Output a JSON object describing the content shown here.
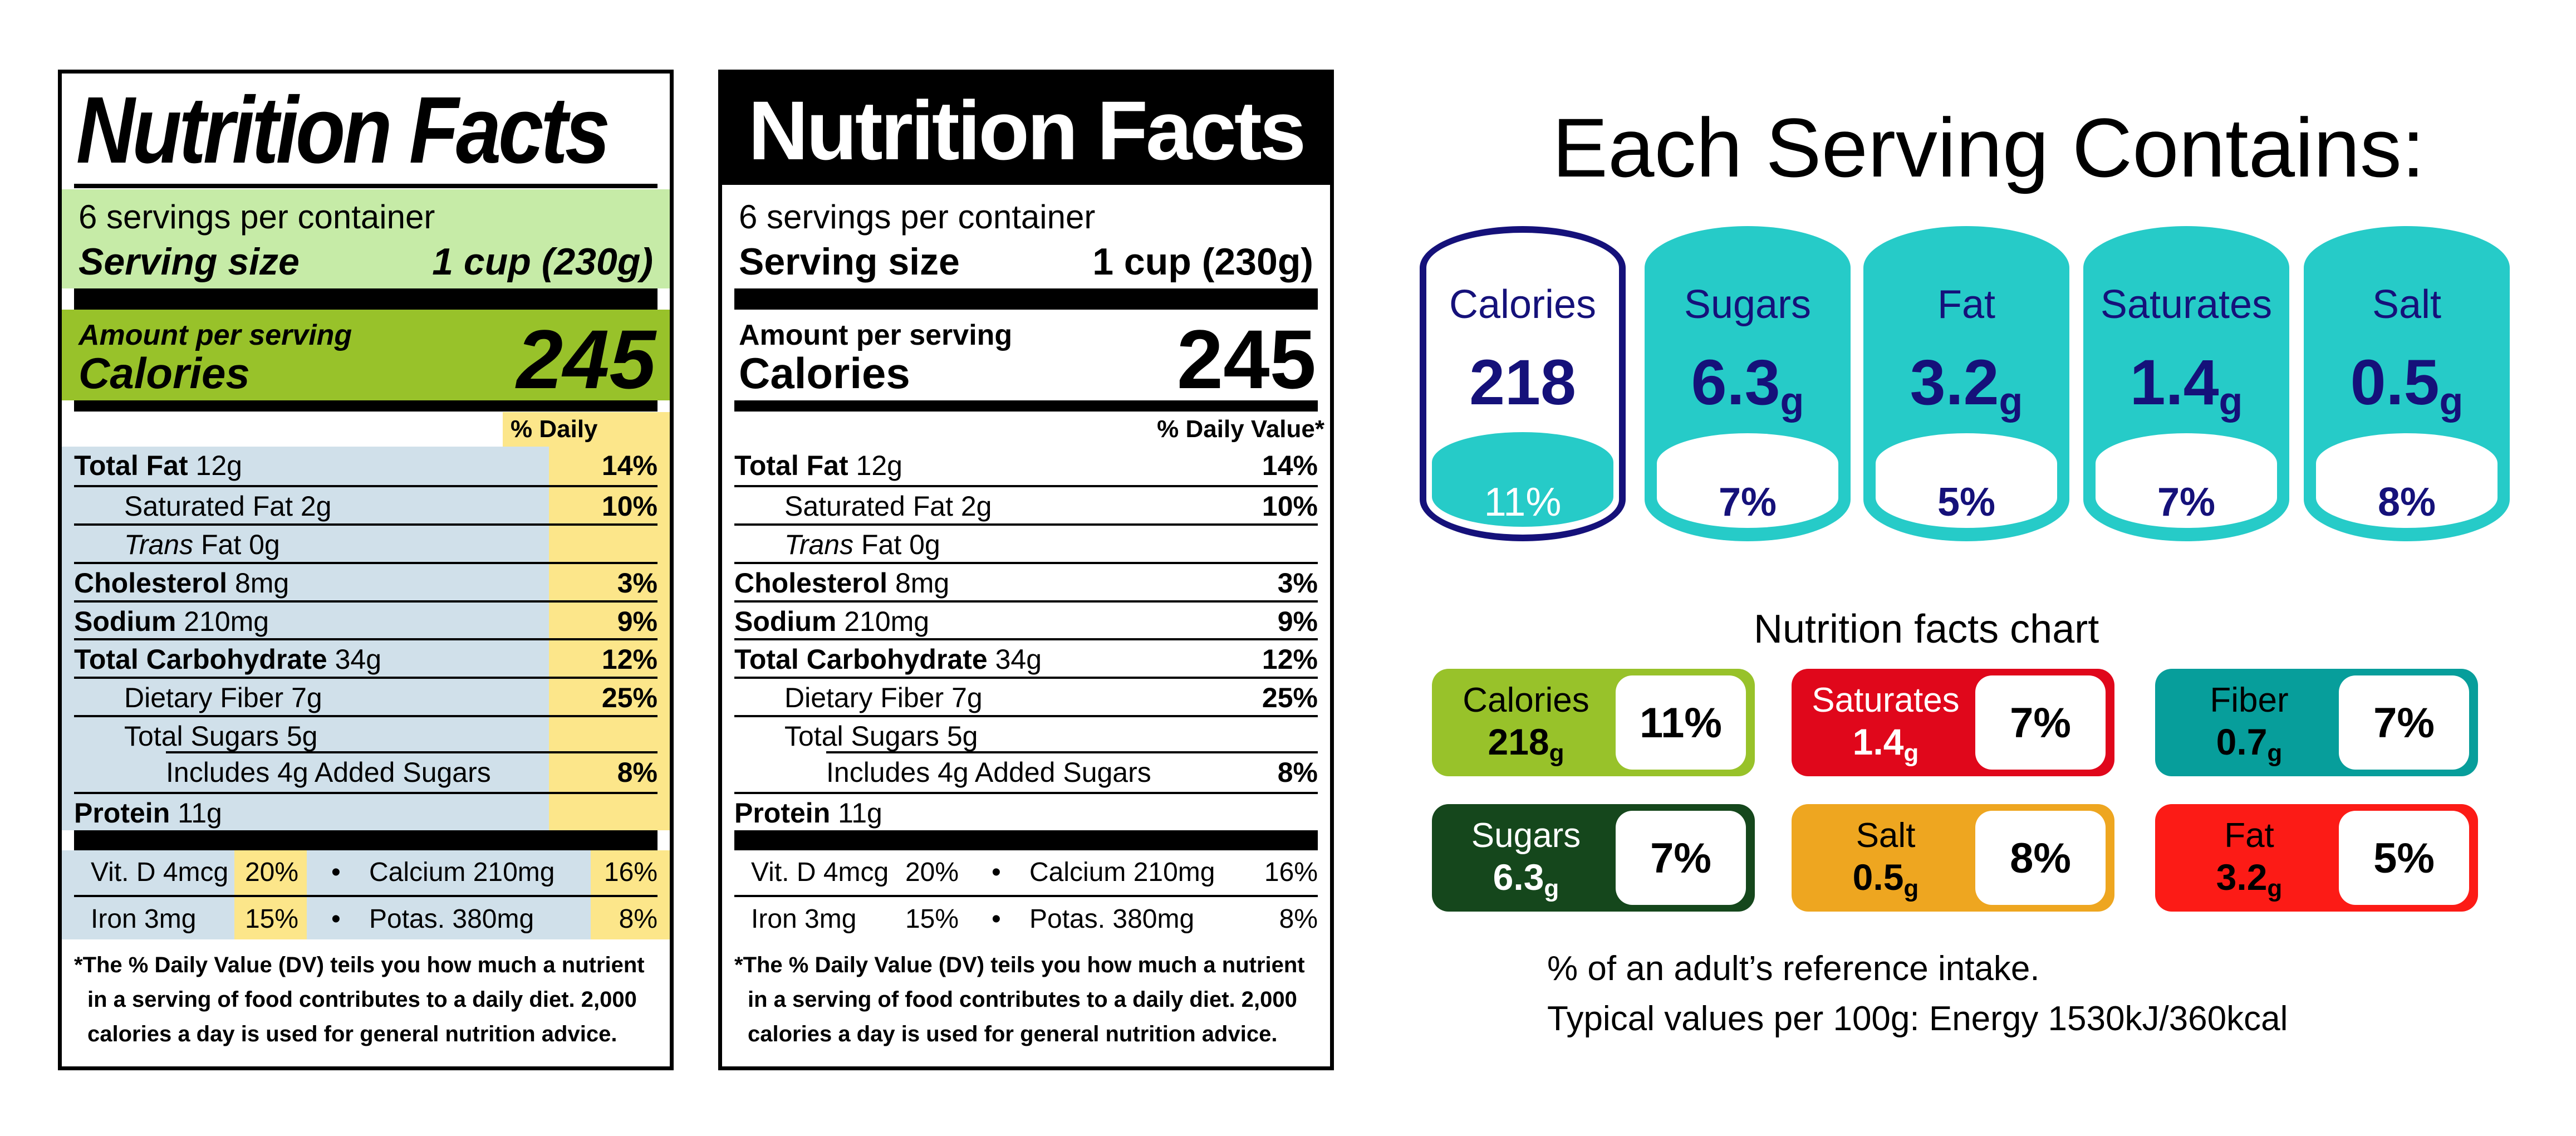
{
  "label_colored": {
    "title": "Nutrition Facts",
    "servings": "6 servings per container",
    "serving_size_label": "Serving size",
    "serving_size_value": "1 cup (230g)",
    "amount_per_serving": "Amount per serving",
    "calories_label": "Calories",
    "calories_value": "245",
    "dv_header": "% Daily Value*",
    "colors": {
      "serving_band": "#c6eba7",
      "calories_band": "#98c22a",
      "nutrient_bg": "#d0e0ea",
      "dv_column": "#fce68a"
    }
  },
  "label_plain": {
    "title": "Nutrition Facts",
    "servings": "6 servings per container",
    "serving_size_label": "Serving size",
    "serving_size_value": "1 cup (230g)",
    "amount_per_serving": "Amount per serving",
    "calories_label": "Calories",
    "calories_value": "245",
    "dv_header": "% Daily Value*"
  },
  "nutrients": [
    {
      "bold": "Total Fat",
      "text": " 12g",
      "dv": "14%",
      "indent": 0
    },
    {
      "text": "Saturated Fat 2g",
      "dv": "10%",
      "indent": 1
    },
    {
      "italic": "Trans",
      "text": " Fat 0g",
      "dv": "",
      "indent": 1
    },
    {
      "bold": "Cholesterol",
      "text": " 8mg",
      "dv": "3%",
      "indent": 0
    },
    {
      "bold": "Sodium",
      "text": " 210mg",
      "dv": "9%",
      "indent": 0
    },
    {
      "bold": "Total Carbohydrate",
      "text": " 34g",
      "dv": "12%",
      "indent": 0
    },
    {
      "text": "Dietary Fiber 7g",
      "dv": "25%",
      "indent": 1
    },
    {
      "text": "Total Sugars 5g",
      "dv": "",
      "indent": 1
    },
    {
      "text": "Includes 4g Added Sugars",
      "dv": "8%",
      "indent": 2
    },
    {
      "bold": "Protein",
      "text": " 11g",
      "dv": "",
      "indent": 0
    }
  ],
  "vitamins": [
    [
      {
        "name": "Vit. D 4mcg",
        "dv": "20%"
      },
      {
        "name": "Calcium 210mg",
        "dv": "16%"
      }
    ],
    [
      {
        "name": "Iron 3mg",
        "dv": "15%"
      },
      {
        "name": "Potas. 380mg",
        "dv": "8%"
      }
    ]
  ],
  "bullet": "•",
  "footnote": [
    "*The % Daily Value (DV) teils you how much a nutrient",
    "in a serving of food contributes to a daily diet. 2,000",
    "calories a day is used for general nutrition advice."
  ],
  "serving_panel": {
    "title": "Each Serving Contains:",
    "colors": {
      "navy": "#15117a",
      "teal": "#26cbc8"
    },
    "items": [
      {
        "name": "Calories",
        "value": "218",
        "unit": "",
        "percent": "11%",
        "percent_fraction": 0.11
      },
      {
        "name": "Sugars",
        "value": "6.3",
        "unit": "g",
        "percent": "7%",
        "percent_fraction": 0.07
      },
      {
        "name": "Fat",
        "value": "3.2",
        "unit": "g",
        "percent": "5%",
        "percent_fraction": 0.05
      },
      {
        "name": "Saturates",
        "value": "1.4",
        "unit": "g",
        "percent": "7%",
        "percent_fraction": 0.07
      },
      {
        "name": "Salt",
        "value": "0.5",
        "unit": "g",
        "percent": "8%",
        "percent_fraction": 0.08
      }
    ]
  },
  "facts_chart": {
    "title": "Nutrition facts chart",
    "items": [
      {
        "name": "Calories",
        "value": "218",
        "unit": "g",
        "percent": "11%",
        "color": "#98c22a",
        "text_color": "#000000"
      },
      {
        "name": "Saturates",
        "value": "1.4",
        "unit": "g",
        "percent": "7%",
        "color": "#e0071b",
        "text_color": "#ffffff"
      },
      {
        "name": "Fiber",
        "value": "0.7",
        "unit": "g",
        "percent": "7%",
        "color": "#079e9b",
        "text_color": "#000000"
      },
      {
        "name": "Sugars",
        "value": "6.3",
        "unit": "g",
        "percent": "7%",
        "color": "#15471c",
        "text_color": "#ffffff"
      },
      {
        "name": "Salt",
        "value": "0.5",
        "unit": "g",
        "percent": "8%",
        "color": "#eea620",
        "text_color": "#000000"
      },
      {
        "name": "Fat",
        "value": "3.2",
        "unit": "g",
        "percent": "5%",
        "color": "#fc1b16",
        "text_color": "#000000"
      }
    ],
    "note_1": "% of an adult’s reference intake.",
    "note_2": "Typical values per 100g: Energy 1530kJ/360kcal"
  }
}
